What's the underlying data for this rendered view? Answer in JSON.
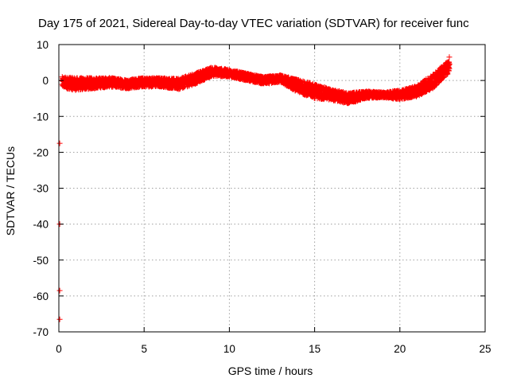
{
  "chart_data": {
    "type": "scatter",
    "title": "Day 175 of 2021, Sidereal Day-to-day VTEC variation (SDTVAR) for receiver func",
    "xlabel": "GPS time / hours",
    "ylabel": "SDTVAR / TECUs",
    "xlim": [
      0,
      25
    ],
    "ylim": [
      -70,
      10
    ],
    "xticks": [
      0,
      5,
      10,
      15,
      20,
      25
    ],
    "yticks": [
      10,
      0,
      -10,
      -20,
      -30,
      -40,
      -50,
      -60,
      -70
    ],
    "grid": true,
    "marker": "plus",
    "series": [
      {
        "name": "SDTVAR",
        "color": "#ff0000",
        "band": [
          [
            0.2,
            -0.5,
            3.0
          ],
          [
            1.0,
            -1.0,
            3.5
          ],
          [
            2.0,
            -0.8,
            3.0
          ],
          [
            3.0,
            -0.5,
            2.5
          ],
          [
            4.0,
            -1.0,
            2.5
          ],
          [
            5.0,
            -0.5,
            2.5
          ],
          [
            6.0,
            -0.5,
            2.5
          ],
          [
            7.0,
            -1.0,
            3.0
          ],
          [
            8.0,
            0.5,
            3.0
          ],
          [
            9.0,
            2.5,
            2.5
          ],
          [
            10.0,
            2.0,
            2.0
          ],
          [
            11.0,
            1.0,
            2.0
          ],
          [
            12.0,
            0.0,
            2.0
          ],
          [
            13.0,
            0.5,
            2.0
          ],
          [
            14.0,
            -1.5,
            3.5
          ],
          [
            15.0,
            -3.0,
            4.0
          ],
          [
            16.0,
            -4.0,
            3.0
          ],
          [
            17.0,
            -5.0,
            3.0
          ],
          [
            18.0,
            -4.0,
            2.0
          ],
          [
            19.0,
            -4.0,
            1.5
          ],
          [
            20.0,
            -4.0,
            2.5
          ],
          [
            21.0,
            -3.0,
            3.0
          ],
          [
            22.0,
            0.0,
            4.0
          ],
          [
            22.9,
            4.0,
            3.5
          ]
        ],
        "outliers": [
          {
            "x": 0.05,
            "y": -17.5
          },
          {
            "x": 0.05,
            "y": -40.0
          },
          {
            "x": 0.05,
            "y": -58.5
          },
          {
            "x": 0.05,
            "y": -66.5
          },
          {
            "x": 22.9,
            "y": 6.5
          }
        ]
      }
    ]
  }
}
